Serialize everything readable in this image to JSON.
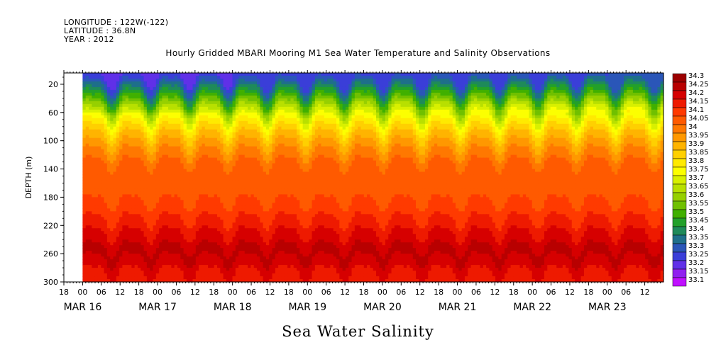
{
  "header": {
    "longitude": "LONGITUDE : 122W(-122)",
    "latitude": "LATITUDE : 36.8N",
    "year": "YEAR : 2012"
  },
  "chart_data": {
    "type": "heatmap",
    "title": "Hourly Gridded MBARI Mooring M1 Sea Water Temperature and Salinity Observations",
    "xlabel": "Sea Water Salinity",
    "ylabel": "DEPTH (m)",
    "x_start": "2012-03-15 18:00",
    "x_end": "2012-03-23 18:00",
    "data_start": "2012-03-16 00:00",
    "y_range": [
      300,
      4
    ],
    "y_ticks": [
      20,
      60,
      100,
      140,
      180,
      220,
      260,
      300
    ],
    "hour_ticks": [
      "18",
      "00",
      "06",
      "12",
      "18",
      "00",
      "06",
      "12",
      "18",
      "00",
      "06",
      "12",
      "18",
      "00",
      "06",
      "12",
      "18",
      "00",
      "06",
      "12",
      "18",
      "00",
      "06",
      "12",
      "18",
      "00",
      "06",
      "12",
      "18",
      "00",
      "06",
      "12"
    ],
    "month_labels": [
      "MAR 16",
      "MAR 17",
      "MAR 18",
      "MAR 19",
      "MAR 20",
      "MAR 21",
      "MAR 22",
      "MAR 23"
    ],
    "colorbar_levels": [
      "34.3",
      "34.25",
      "34.2",
      "34.15",
      "34.1",
      "34.05",
      "34",
      "33.95",
      "33.9",
      "33.85",
      "33.8",
      "33.75",
      "33.7",
      "33.65",
      "33.6",
      "33.55",
      "33.5",
      "33.45",
      "33.4",
      "33.35",
      "33.3",
      "33.25",
      "33.2",
      "33.15",
      "33.1"
    ],
    "colors": [
      "#9c0000",
      "#b80000",
      "#d60000",
      "#ee1a00",
      "#ff3a00",
      "#ff5a00",
      "#ff7800",
      "#ff9800",
      "#ffb400",
      "#ffd000",
      "#ffea00",
      "#fcff00",
      "#d8f000",
      "#b8e000",
      "#96d000",
      "#70c000",
      "#40b000",
      "#22a02a",
      "#1e8a5a",
      "#1e6f8a",
      "#2a56b8",
      "#3a3ed8",
      "#6030e8",
      "#9020f0",
      "#c010ff"
    ],
    "profile_depth": [
      10,
      25,
      40,
      55,
      70,
      85,
      100,
      115,
      130,
      150,
      180,
      210,
      230,
      245,
      260,
      275,
      300
    ],
    "profile_salinity": [
      33.26,
      33.38,
      33.52,
      33.66,
      33.78,
      33.87,
      33.94,
      34.0,
      34.05,
      34.09,
      34.09,
      34.15,
      34.2,
      34.24,
      34.27,
      34.22,
      34.17
    ],
    "summary": {
      "surface_min_salinity": 33.15,
      "deep_max_salinity": 34.3
    }
  }
}
